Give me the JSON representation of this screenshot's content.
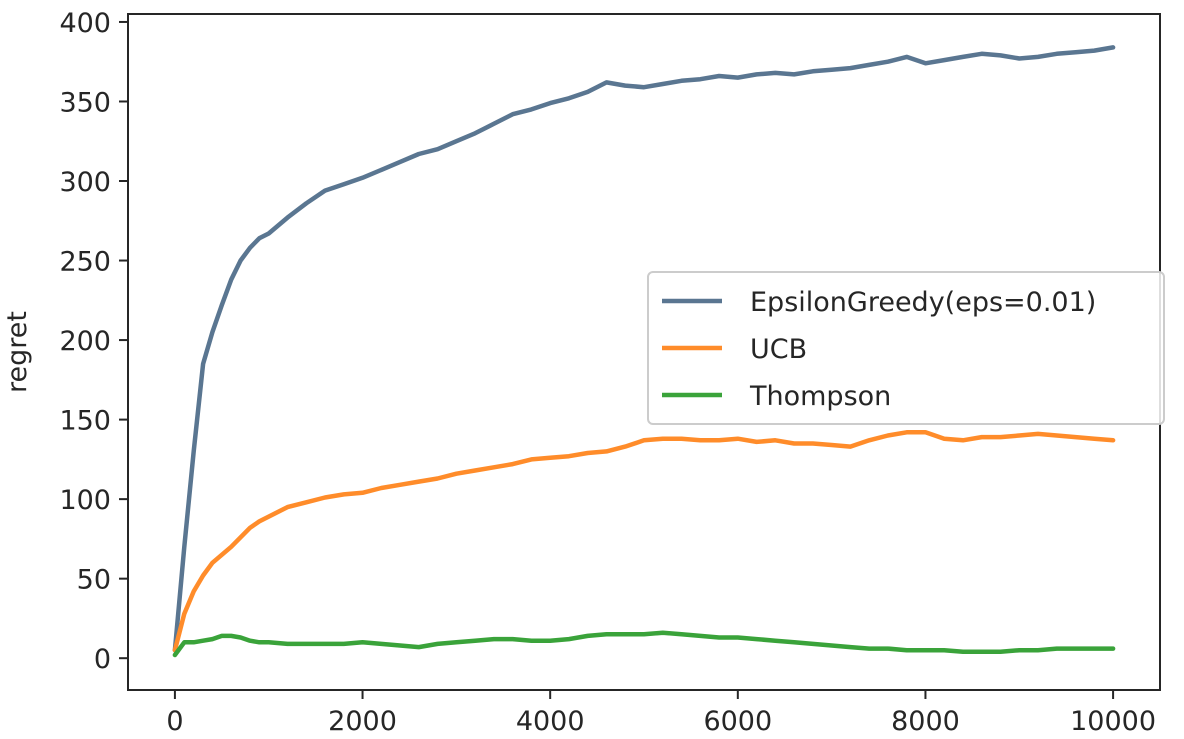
{
  "chart_data": {
    "type": "line",
    "title": "",
    "xlabel": "",
    "ylabel": "regret",
    "xlim": [
      -500,
      10500
    ],
    "ylim": [
      -20,
      405
    ],
    "xticks": [
      0,
      2000,
      4000,
      6000,
      8000,
      10000
    ],
    "xtick_labels": [
      "0",
      "2000",
      "4000",
      "6000",
      "8000",
      "10000"
    ],
    "yticks": [
      0,
      50,
      100,
      150,
      200,
      250,
      300,
      350,
      400
    ],
    "ytick_labels": [
      "0",
      "50",
      "100",
      "150",
      "200",
      "250",
      "300",
      "350",
      "400"
    ],
    "grid": false,
    "legend_position": "center-right",
    "series": [
      {
        "name": "EpsilonGreedy(eps=0.01)",
        "color": "#5a7691",
        "x": [
          0,
          100,
          200,
          300,
          400,
          500,
          600,
          700,
          800,
          900,
          1000,
          1200,
          1400,
          1600,
          1800,
          2000,
          2200,
          2400,
          2600,
          2800,
          3000,
          3200,
          3400,
          3600,
          3800,
          4000,
          4200,
          4400,
          4600,
          4800,
          5000,
          5200,
          5400,
          5600,
          5800,
          6000,
          6200,
          6400,
          6600,
          6800,
          7000,
          7200,
          7400,
          7600,
          7800,
          8000,
          8200,
          8400,
          8600,
          8800,
          9000,
          9200,
          9400,
          9600,
          9800,
          10000
        ],
        "y": [
          5,
          70,
          130,
          185,
          205,
          222,
          238,
          250,
          258,
          264,
          267,
          277,
          286,
          294,
          298,
          302,
          307,
          312,
          317,
          320,
          325,
          330,
          336,
          342,
          345,
          349,
          352,
          356,
          362,
          360,
          359,
          361,
          363,
          364,
          366,
          365,
          367,
          368,
          367,
          369,
          370,
          371,
          373,
          375,
          378,
          374,
          376,
          378,
          380,
          379,
          377,
          378,
          380,
          381,
          382,
          384
        ]
      },
      {
        "name": "UCB",
        "color": "#ff8c2a",
        "x": [
          0,
          100,
          200,
          300,
          400,
          500,
          600,
          700,
          800,
          900,
          1000,
          1200,
          1400,
          1600,
          1800,
          2000,
          2200,
          2400,
          2600,
          2800,
          3000,
          3200,
          3400,
          3600,
          3800,
          4000,
          4200,
          4400,
          4600,
          4800,
          5000,
          5200,
          5400,
          5600,
          5800,
          6000,
          6200,
          6400,
          6600,
          6800,
          7000,
          7200,
          7400,
          7600,
          7800,
          8000,
          8200,
          8400,
          8600,
          8800,
          9000,
          9200,
          9400,
          9600,
          9800,
          10000
        ],
        "y": [
          5,
          28,
          42,
          52,
          60,
          65,
          70,
          76,
          82,
          86,
          89,
          95,
          98,
          101,
          103,
          104,
          107,
          109,
          111,
          113,
          116,
          118,
          120,
          122,
          125,
          126,
          127,
          129,
          130,
          133,
          137,
          138,
          138,
          137,
          137,
          138,
          136,
          137,
          135,
          135,
          134,
          133,
          137,
          140,
          142,
          142,
          138,
          137,
          139,
          139,
          140,
          141,
          140,
          139,
          138,
          137
        ]
      },
      {
        "name": "Thompson",
        "color": "#3aa33a",
        "x": [
          0,
          100,
          200,
          300,
          400,
          500,
          600,
          700,
          800,
          900,
          1000,
          1200,
          1400,
          1600,
          1800,
          2000,
          2200,
          2400,
          2600,
          2800,
          3000,
          3200,
          3400,
          3600,
          3800,
          4000,
          4200,
          4400,
          4600,
          4800,
          5000,
          5200,
          5400,
          5600,
          5800,
          6000,
          6200,
          6400,
          6600,
          6800,
          7000,
          7200,
          7400,
          7600,
          7800,
          8000,
          8200,
          8400,
          8600,
          8800,
          9000,
          9200,
          9400,
          9600,
          9800,
          10000
        ],
        "y": [
          2,
          10,
          10,
          11,
          12,
          14,
          14,
          13,
          11,
          10,
          10,
          9,
          9,
          9,
          9,
          10,
          9,
          8,
          7,
          9,
          10,
          11,
          12,
          12,
          11,
          11,
          12,
          14,
          15,
          15,
          15,
          16,
          15,
          14,
          13,
          13,
          12,
          11,
          10,
          9,
          8,
          7,
          6,
          6,
          5,
          5,
          5,
          4,
          4,
          4,
          5,
          5,
          6,
          6,
          6,
          6
        ]
      }
    ]
  }
}
